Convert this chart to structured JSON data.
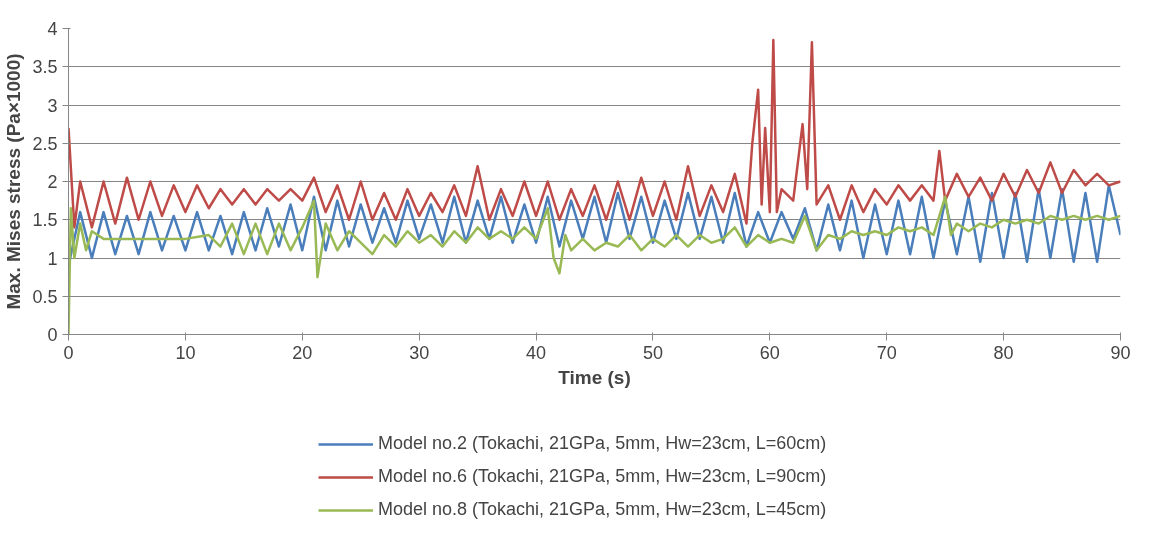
{
  "chart_data": {
    "type": "line",
    "xlabel": "Time (s)",
    "ylabel": "Max. Mises stress (Pa×1000)",
    "xlim": [
      0,
      90
    ],
    "ylim": [
      0,
      4
    ],
    "xticks": [
      0,
      10,
      20,
      30,
      40,
      50,
      60,
      70,
      80,
      90
    ],
    "yticks": [
      0,
      0.5,
      1,
      1.5,
      2,
      2.5,
      3,
      3.5,
      4
    ],
    "grid": "y",
    "legend": "bottom",
    "marker": "none",
    "line_style": "solid",
    "series": [
      {
        "name": "Model no.2 (Tokachi, 21GPa, 5mm, Hw=23cm, L=60cm)",
        "color": "#4a7ebb",
        "x": [
          0,
          1,
          2,
          3,
          4,
          5,
          6,
          7,
          8,
          9,
          10,
          11,
          12,
          13,
          14,
          15,
          16,
          17,
          18,
          19,
          20,
          21,
          22,
          23,
          24,
          25,
          26,
          27,
          28,
          29,
          30,
          31,
          32,
          33,
          34,
          35,
          36,
          37,
          38,
          39,
          40,
          41,
          42,
          43,
          44,
          45,
          46,
          47,
          48,
          49,
          50,
          51,
          52,
          53,
          54,
          55,
          56,
          57,
          58,
          59,
          60,
          61,
          62,
          63,
          64,
          65,
          66,
          67,
          68,
          69,
          70,
          71,
          72,
          73,
          74,
          75,
          76,
          77,
          78,
          79,
          80,
          81,
          82,
          83,
          84,
          85,
          86,
          87,
          88,
          89,
          90
        ],
        "values": [
          0.9,
          1.6,
          1.0,
          1.6,
          1.05,
          1.55,
          1.05,
          1.6,
          1.1,
          1.55,
          1.1,
          1.6,
          1.1,
          1.55,
          1.05,
          1.6,
          1.1,
          1.65,
          1.15,
          1.7,
          1.1,
          1.8,
          1.1,
          1.75,
          1.15,
          1.7,
          1.2,
          1.65,
          1.2,
          1.75,
          1.25,
          1.7,
          1.2,
          1.8,
          1.2,
          1.75,
          1.25,
          1.8,
          1.2,
          1.7,
          1.2,
          1.8,
          1.15,
          1.75,
          1.25,
          1.8,
          1.2,
          1.85,
          1.25,
          1.8,
          1.2,
          1.75,
          1.25,
          1.85,
          1.25,
          1.8,
          1.2,
          1.85,
          1.15,
          1.6,
          1.2,
          1.6,
          1.25,
          1.65,
          1.1,
          1.7,
          1.1,
          1.75,
          1.0,
          1.7,
          1.05,
          1.75,
          1.05,
          1.8,
          1.0,
          1.75,
          1.05,
          1.8,
          0.95,
          1.85,
          1.0,
          1.85,
          0.95,
          1.9,
          1.0,
          1.9,
          0.95,
          1.85,
          0.95,
          1.95,
          1.3
        ]
      },
      {
        "name": "Model no.6 (Tokachi, 21GPa, 5mm, Hw=23cm, L=90cm)",
        "color": "#be4b48",
        "x": [
          0,
          0.5,
          1,
          2,
          3,
          4,
          5,
          6,
          7,
          8,
          9,
          10,
          11,
          12,
          13,
          14,
          15,
          16,
          17,
          18,
          19,
          20,
          21,
          22,
          23,
          24,
          25,
          26,
          27,
          28,
          29,
          30,
          31,
          32,
          33,
          34,
          35,
          36,
          37,
          38,
          39,
          40,
          41,
          42,
          43,
          44,
          45,
          46,
          47,
          48,
          49,
          50,
          51,
          52,
          53,
          54,
          55,
          56,
          57,
          58,
          58.5,
          59,
          59.3,
          59.6,
          60,
          60.3,
          60.6,
          61,
          62,
          62.8,
          63.2,
          63.6,
          64,
          65,
          66,
          67,
          68,
          69,
          70,
          71,
          72,
          73,
          74,
          74.5,
          75,
          76,
          77,
          78,
          79,
          80,
          81,
          82,
          83,
          84,
          85,
          86,
          87,
          88,
          89,
          90
        ],
        "values": [
          2.7,
          1.4,
          2.0,
          1.4,
          2.0,
          1.45,
          2.05,
          1.5,
          2.0,
          1.55,
          1.95,
          1.6,
          1.95,
          1.65,
          1.9,
          1.7,
          1.9,
          1.7,
          1.9,
          1.75,
          1.9,
          1.75,
          2.05,
          1.6,
          1.95,
          1.5,
          2.0,
          1.5,
          1.85,
          1.5,
          1.9,
          1.55,
          1.85,
          1.6,
          1.95,
          1.55,
          2.2,
          1.5,
          1.9,
          1.55,
          2.0,
          1.55,
          2.0,
          1.5,
          1.9,
          1.55,
          1.95,
          1.5,
          2.0,
          1.5,
          2.05,
          1.55,
          2.0,
          1.5,
          2.2,
          1.55,
          1.95,
          1.6,
          2.1,
          1.45,
          2.5,
          3.2,
          1.7,
          2.7,
          1.6,
          3.85,
          1.6,
          1.9,
          1.75,
          2.75,
          1.9,
          3.82,
          1.7,
          1.95,
          1.5,
          1.95,
          1.6,
          1.9,
          1.7,
          1.95,
          1.75,
          1.95,
          1.75,
          2.4,
          1.75,
          2.1,
          1.8,
          2.05,
          1.75,
          2.1,
          1.8,
          2.15,
          1.85,
          2.25,
          1.85,
          2.15,
          1.95,
          2.1,
          1.95,
          2.0
        ]
      },
      {
        "name": "Model no.8 (Tokachi, 21GPa, 5mm, Hw=23cm, L=45cm)",
        "color": "#98b954",
        "x": [
          0,
          0.2,
          0.5,
          1,
          1.5,
          2,
          3,
          5,
          8,
          10,
          12,
          13,
          14,
          15,
          16,
          17,
          18,
          19,
          20,
          21,
          21.3,
          22,
          23,
          24,
          25,
          26,
          27,
          28,
          29,
          30,
          31,
          32,
          33,
          34,
          35,
          36,
          37,
          38,
          39,
          40,
          41,
          41.5,
          42,
          42.5,
          43,
          44,
          45,
          46,
          47,
          48,
          49,
          50,
          51,
          52,
          53,
          54,
          55,
          56,
          57,
          58,
          59,
          60,
          61,
          62,
          63,
          64,
          65,
          66,
          67,
          68,
          69,
          70,
          71,
          72,
          73,
          74,
          75,
          75.5,
          76,
          77,
          78,
          79,
          80,
          81,
          82,
          83,
          84,
          85,
          86,
          87,
          88,
          89,
          90
        ],
        "values": [
          0,
          1.65,
          1.0,
          1.45,
          1.1,
          1.35,
          1.25,
          1.25,
          1.25,
          1.25,
          1.3,
          1.15,
          1.45,
          1.05,
          1.45,
          1.05,
          1.45,
          1.1,
          1.4,
          1.75,
          0.75,
          1.45,
          1.1,
          1.35,
          1.2,
          1.05,
          1.3,
          1.15,
          1.35,
          1.2,
          1.3,
          1.15,
          1.35,
          1.2,
          1.4,
          1.25,
          1.35,
          1.25,
          1.4,
          1.25,
          1.65,
          1.0,
          0.8,
          1.3,
          1.1,
          1.25,
          1.1,
          1.2,
          1.15,
          1.3,
          1.1,
          1.25,
          1.15,
          1.3,
          1.15,
          1.3,
          1.2,
          1.25,
          1.4,
          1.15,
          1.3,
          1.2,
          1.25,
          1.2,
          1.55,
          1.1,
          1.3,
          1.25,
          1.35,
          1.3,
          1.35,
          1.3,
          1.4,
          1.35,
          1.4,
          1.3,
          1.8,
          1.3,
          1.45,
          1.35,
          1.45,
          1.4,
          1.5,
          1.45,
          1.5,
          1.45,
          1.55,
          1.5,
          1.55,
          1.5,
          1.55,
          1.5,
          1.55
        ]
      }
    ]
  }
}
